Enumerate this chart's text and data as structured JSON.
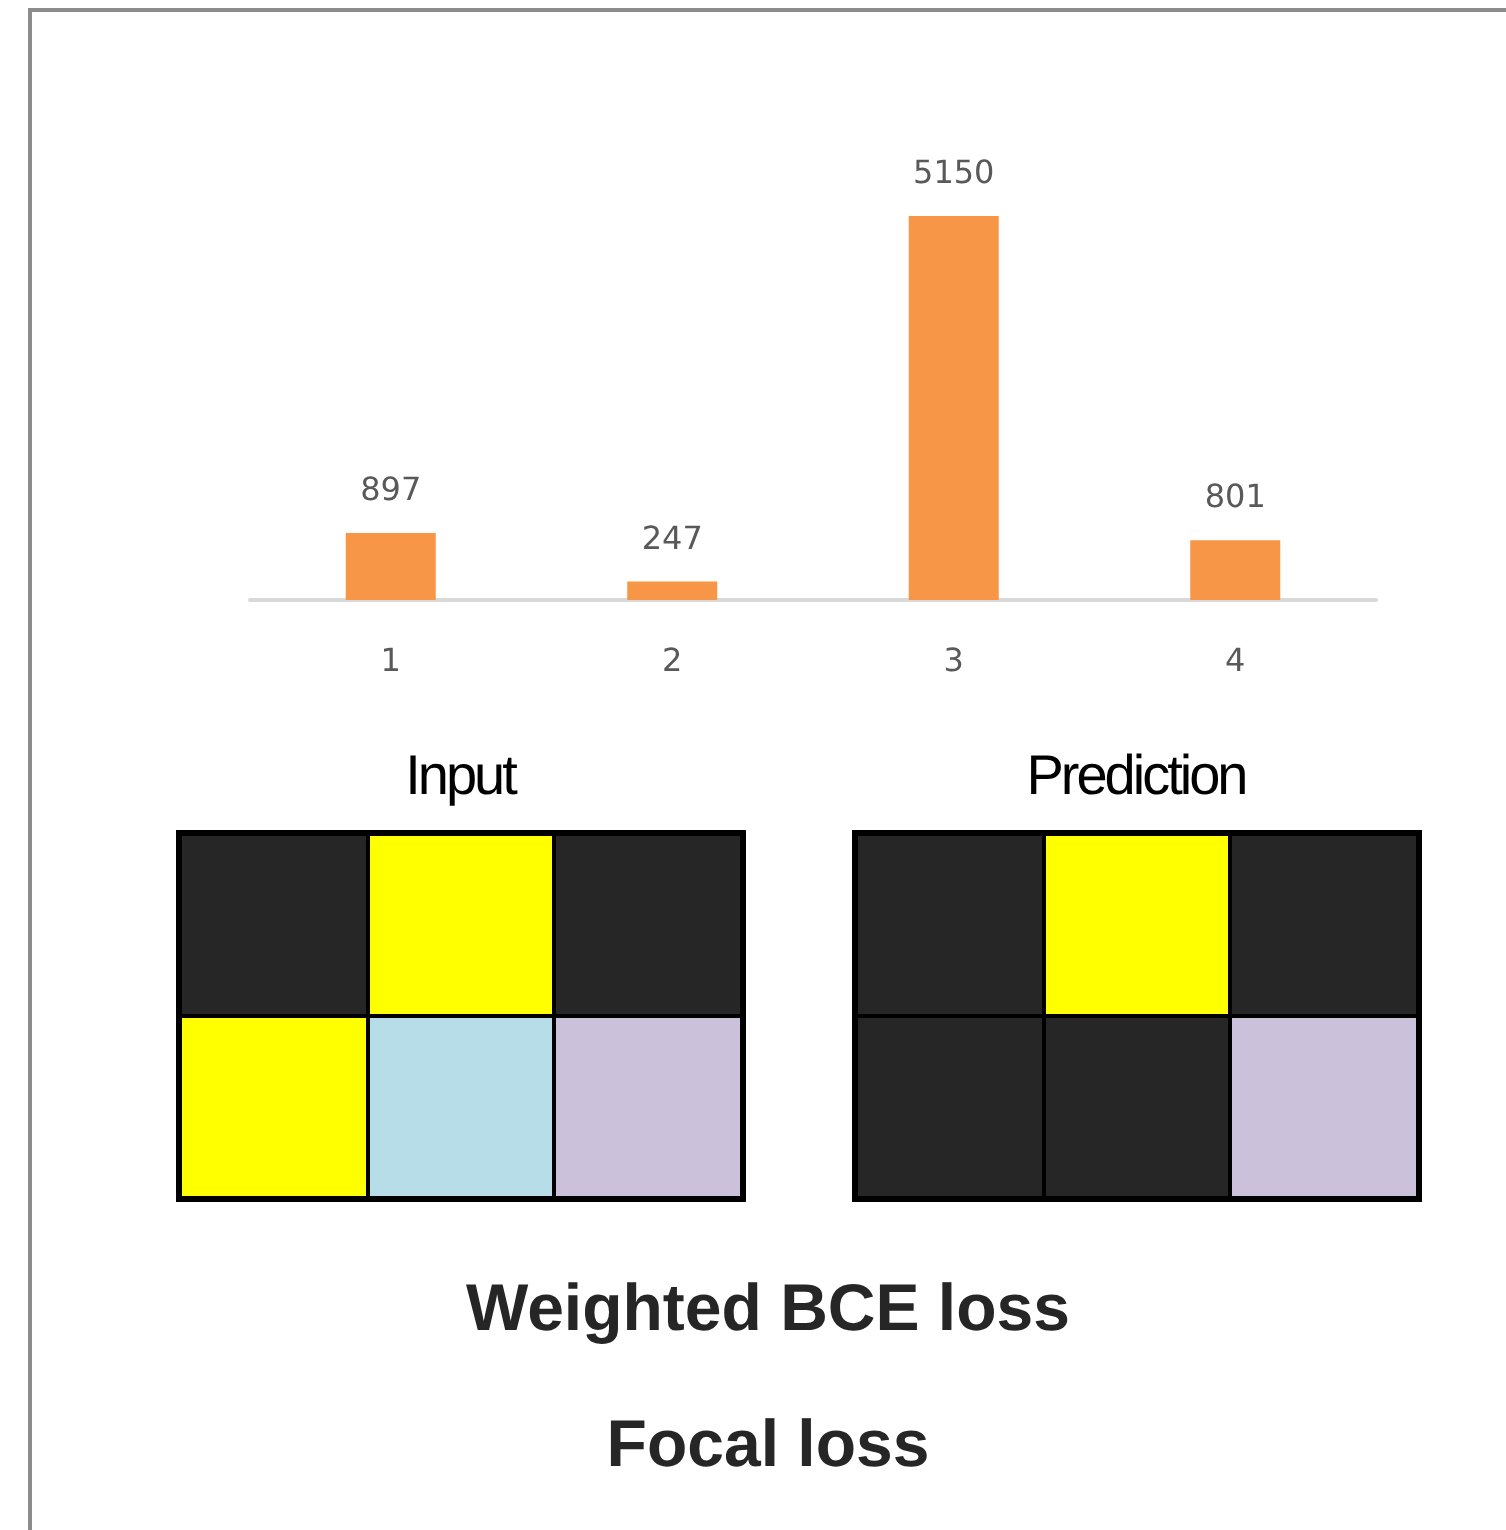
{
  "chart_data": {
    "type": "bar",
    "categories": [
      "1",
      "2",
      "3",
      "4"
    ],
    "values": [
      897,
      247,
      5150,
      801
    ],
    "color": "#f79646",
    "data_labels": true,
    "annotations": [
      "Input",
      "Prediction",
      "Weighted BCE loss",
      "Focal loss"
    ]
  }
}
